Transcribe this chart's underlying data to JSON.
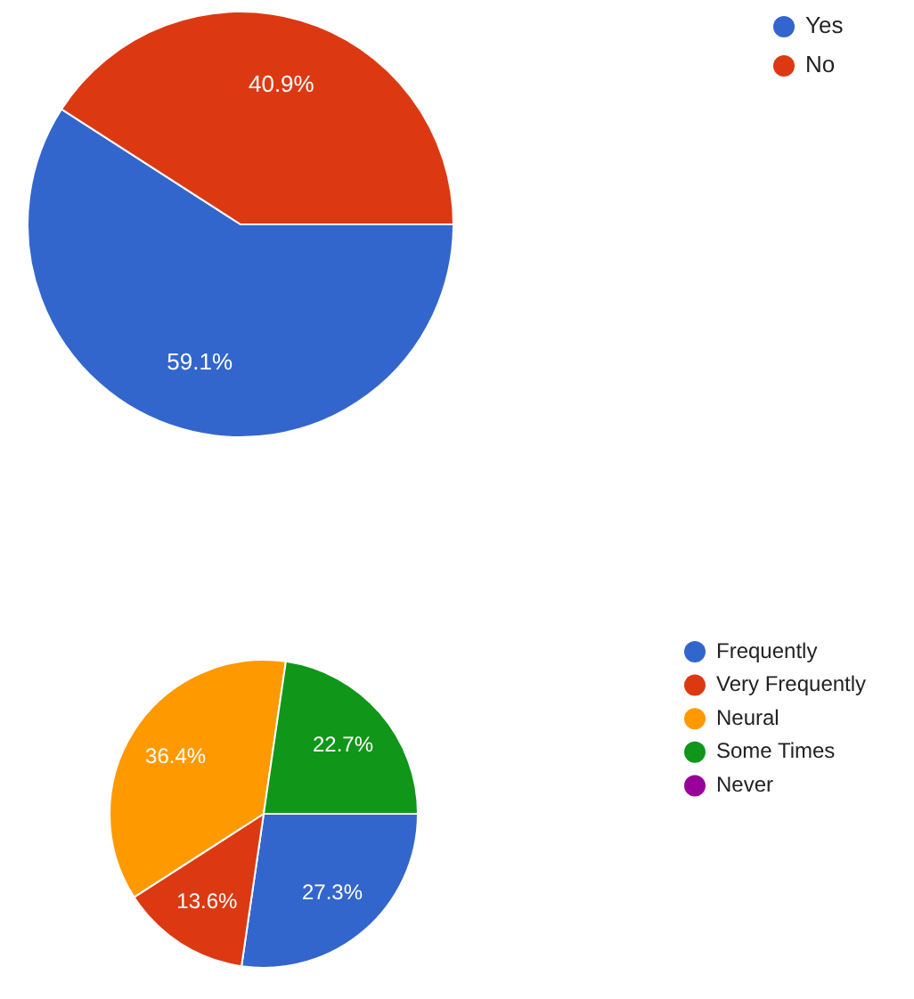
{
  "chart_data": [
    {
      "type": "pie",
      "categories": [
        "Yes",
        "No"
      ],
      "values": [
        59.1,
        40.9
      ],
      "colors": [
        "#3366cc",
        "#dc3912"
      ],
      "value_labels": [
        "59.1%",
        "40.9%"
      ],
      "legend": "top right"
    },
    {
      "type": "pie",
      "categories": [
        "Frequently",
        "Very Frequently",
        "Neural",
        "Some Times",
        "Never"
      ],
      "values": [
        27.3,
        13.6,
        36.4,
        22.7,
        0
      ],
      "colors": [
        "#3366cc",
        "#dc3912",
        "#ff9900",
        "#109618",
        "#990099"
      ],
      "value_labels": [
        "27.3%",
        "13.6%",
        "36.4%",
        "22.7%",
        null
      ],
      "legend": "right"
    }
  ]
}
